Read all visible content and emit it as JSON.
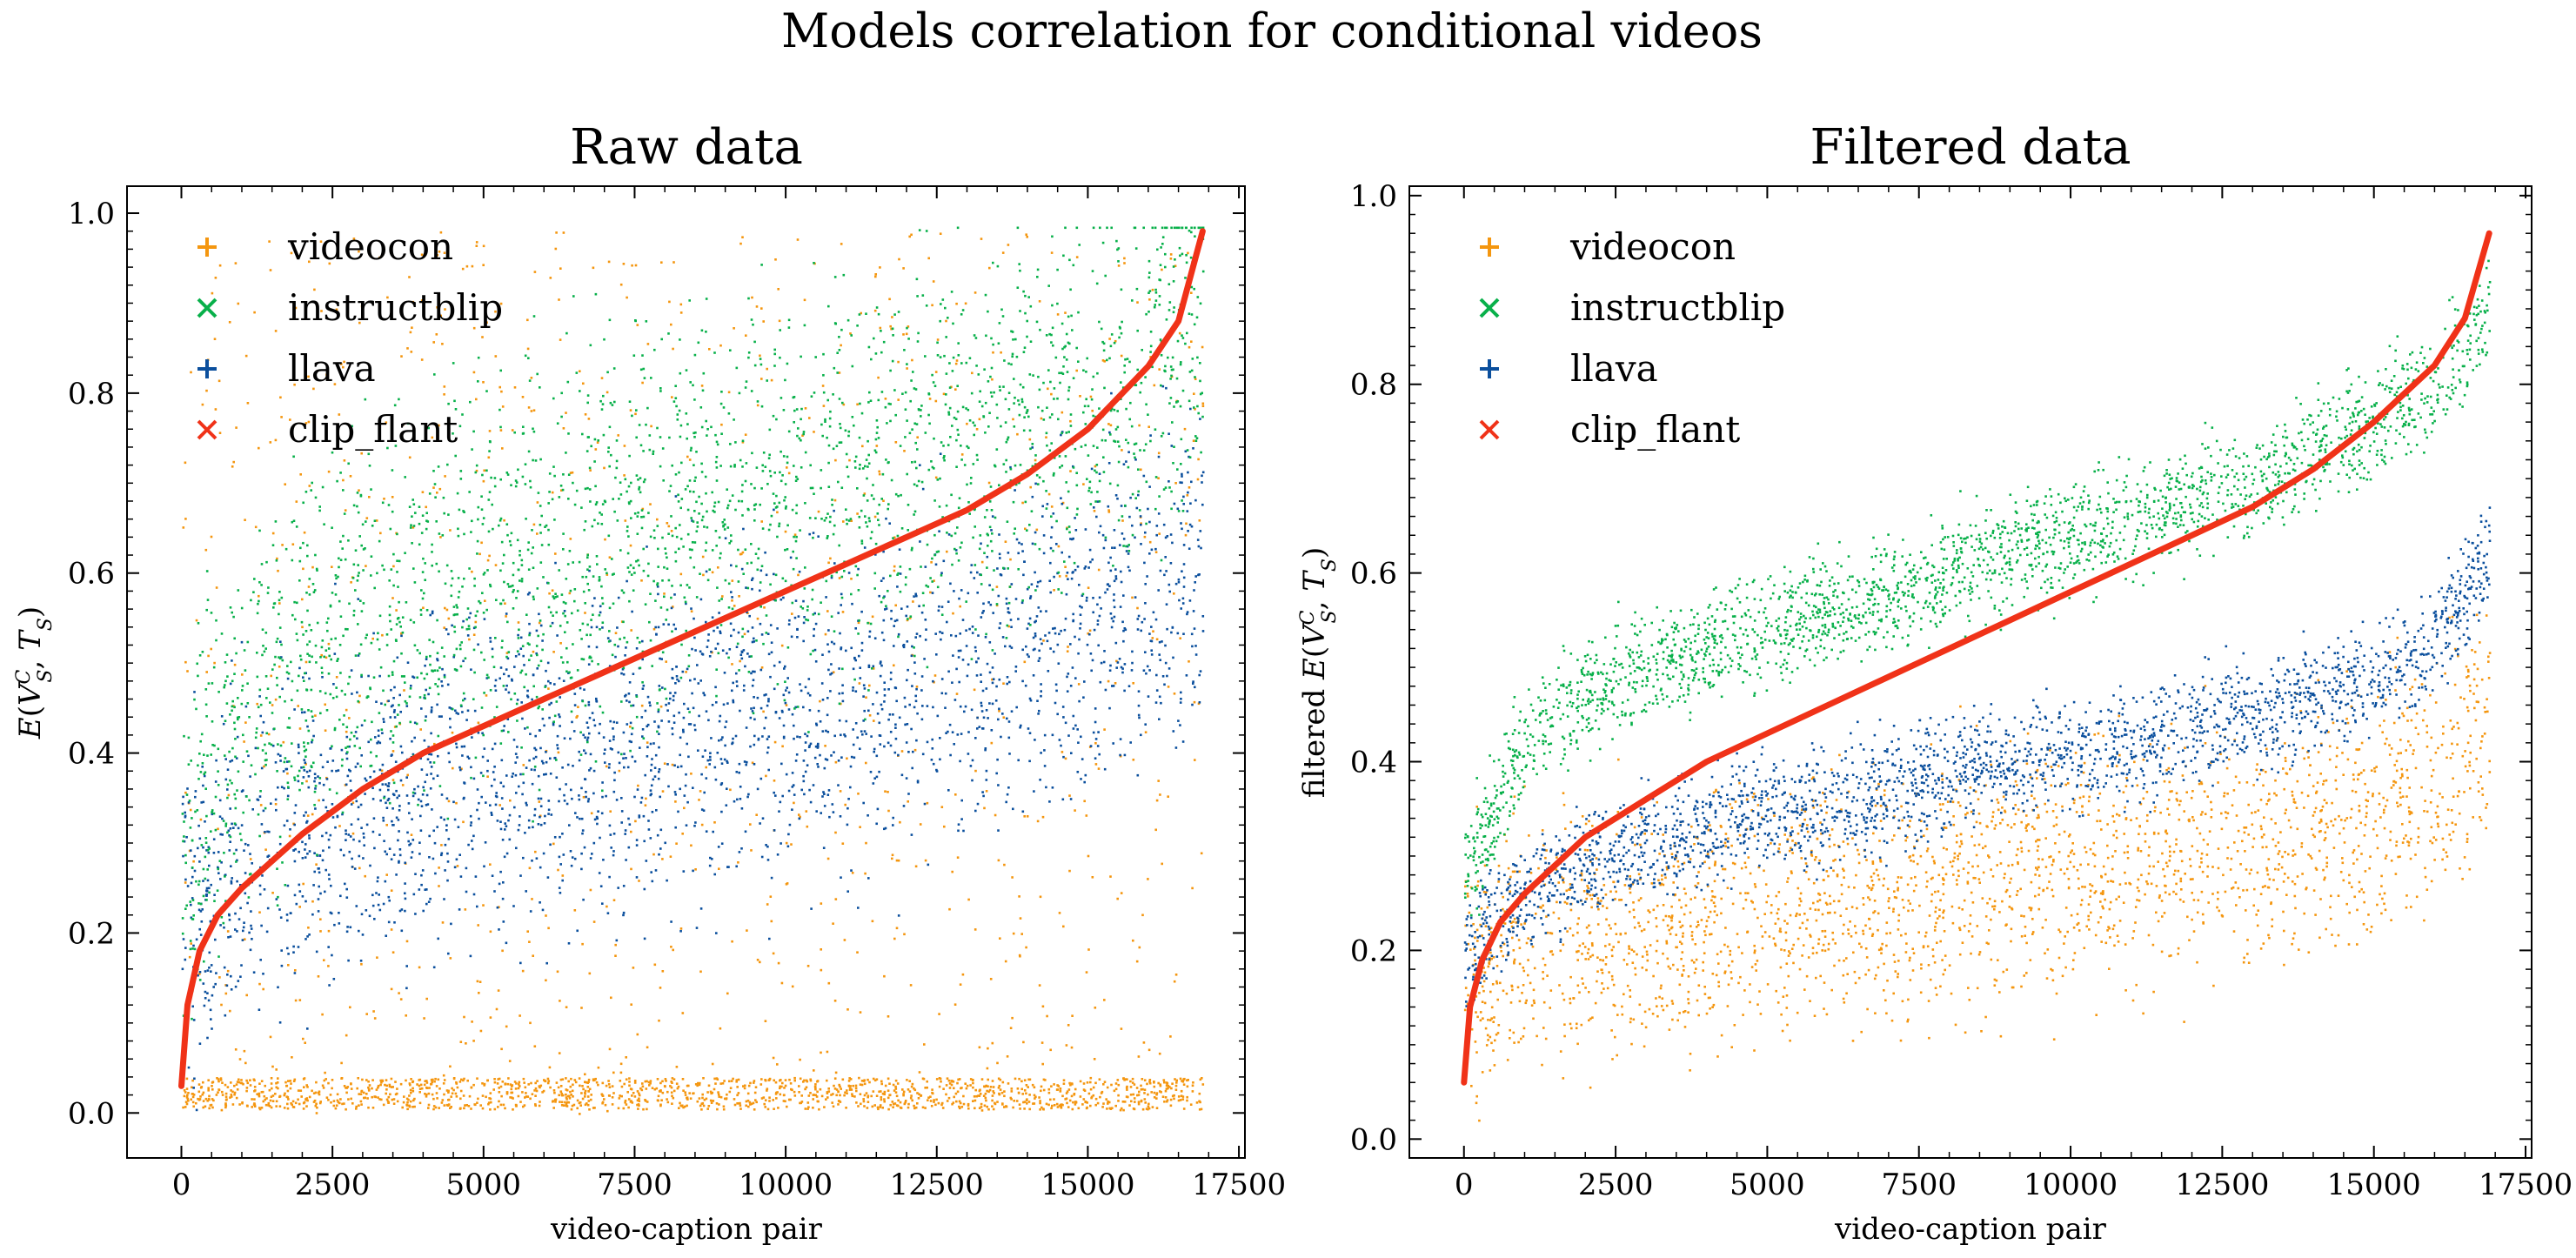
{
  "figure": {
    "suptitle": "Models correlation for conditional videos"
  },
  "colors": {
    "videocon": "#f4960f",
    "instructblip": "#08b04a",
    "llava": "#0b4f9d",
    "clip_flant": "#f03218"
  },
  "chart_data": [
    {
      "type": "scatter",
      "title": "Raw data",
      "xlabel": "video-caption pair",
      "ylabel": "E(V_S^C, T_S)",
      "xlim": [
        -900,
        17600
      ],
      "ylim": [
        -0.05,
        1.03
      ],
      "xticks": [
        0,
        2500,
        5000,
        7500,
        10000,
        12500,
        15000,
        17500
      ],
      "xtick_labels": [
        "0",
        "2500",
        "5000",
        "7500",
        "10000",
        "12500",
        "15000",
        "17500"
      ],
      "yticks": [
        0.0,
        0.2,
        0.4,
        0.6,
        0.8,
        1.0
      ],
      "ytick_labels": [
        "0.0",
        "0.2",
        "0.4",
        "0.6",
        "0.8",
        "1.0"
      ],
      "grid": false,
      "legend_position": "top-left",
      "n_points": 16900,
      "series": [
        {
          "name": "videocon",
          "marker": "+",
          "color": "#f4960f",
          "x": [
            0,
            1000,
            2000,
            3000,
            4000,
            5000,
            6000,
            7000,
            8000,
            9000,
            10000,
            11000,
            12000,
            13000,
            14000,
            15000,
            16000,
            16900
          ],
          "y": [
            0.05,
            0.04,
            0.04,
            0.04,
            0.04,
            0.05,
            0.05,
            0.05,
            0.05,
            0.06,
            0.06,
            0.06,
            0.07,
            0.07,
            0.08,
            0.09,
            0.12,
            0.15
          ],
          "spread": "most points near 0.0 with sparse scatter up to 1.0"
        },
        {
          "name": "instructblip",
          "marker": "x",
          "color": "#08b04a",
          "x": [
            0,
            1000,
            2000,
            3000,
            4000,
            5000,
            6000,
            7000,
            8000,
            9000,
            10000,
            11000,
            12000,
            13000,
            14000,
            15000,
            16000,
            16900
          ],
          "y": [
            0.3,
            0.43,
            0.5,
            0.54,
            0.57,
            0.6,
            0.62,
            0.64,
            0.66,
            0.68,
            0.69,
            0.71,
            0.73,
            0.75,
            0.77,
            0.8,
            0.84,
            0.88
          ],
          "spread": "about ±0.15"
        },
        {
          "name": "llava",
          "marker": "+",
          "color": "#0b4f9d",
          "x": [
            0,
            1000,
            2000,
            3000,
            4000,
            5000,
            6000,
            7000,
            8000,
            9000,
            10000,
            11000,
            12000,
            13000,
            14000,
            15000,
            16000,
            16900
          ],
          "y": [
            0.22,
            0.28,
            0.31,
            0.34,
            0.36,
            0.38,
            0.39,
            0.41,
            0.42,
            0.44,
            0.45,
            0.46,
            0.48,
            0.5,
            0.52,
            0.55,
            0.58,
            0.62
          ],
          "spread": "about ±0.14"
        },
        {
          "name": "clip_flant",
          "marker": "x",
          "color": "#f03218",
          "x": [
            0,
            100,
            300,
            600,
            1000,
            2000,
            3000,
            4000,
            5000,
            6000,
            7000,
            8000,
            9000,
            10000,
            11000,
            12000,
            13000,
            14000,
            15000,
            16000,
            16500,
            16900
          ],
          "y": [
            0.03,
            0.12,
            0.18,
            0.22,
            0.25,
            0.31,
            0.36,
            0.4,
            0.43,
            0.46,
            0.49,
            0.52,
            0.55,
            0.58,
            0.61,
            0.64,
            0.67,
            0.71,
            0.76,
            0.83,
            0.88,
            0.98
          ]
        }
      ]
    },
    {
      "type": "scatter",
      "title": "Filtered data",
      "xlabel": "video-caption pair",
      "ylabel": "filtered E(V_S^C, T_S)",
      "xlim": [
        -900,
        17600
      ],
      "ylim": [
        -0.02,
        1.01
      ],
      "xticks": [
        0,
        2500,
        5000,
        7500,
        10000,
        12500,
        15000,
        17500
      ],
      "xtick_labels": [
        "0",
        "2500",
        "5000",
        "7500",
        "10000",
        "12500",
        "15000",
        "17500"
      ],
      "yticks": [
        0.0,
        0.2,
        0.4,
        0.6,
        0.8,
        1.0
      ],
      "ytick_labels": [
        "0.0",
        "0.2",
        "0.4",
        "0.6",
        "0.8",
        "1.0"
      ],
      "grid": false,
      "legend_position": "top-left",
      "n_points": 16900,
      "series": [
        {
          "name": "videocon",
          "marker": "+",
          "color": "#f4960f",
          "x": [
            0,
            1000,
            2000,
            3000,
            4000,
            5000,
            6000,
            7000,
            8000,
            9000,
            10000,
            11000,
            12000,
            13000,
            14000,
            15000,
            16000,
            16900
          ],
          "y": [
            0.18,
            0.2,
            0.21,
            0.22,
            0.23,
            0.24,
            0.25,
            0.26,
            0.27,
            0.28,
            0.29,
            0.3,
            0.31,
            0.32,
            0.33,
            0.35,
            0.38,
            0.45
          ],
          "spread": "about ±0.10"
        },
        {
          "name": "instructblip",
          "marker": "x",
          "color": "#08b04a",
          "x": [
            0,
            1000,
            2000,
            3000,
            4000,
            5000,
            6000,
            7000,
            8000,
            9000,
            10000,
            11000,
            12000,
            13000,
            14000,
            15000,
            16000,
            16900
          ],
          "y": [
            0.28,
            0.42,
            0.47,
            0.5,
            0.52,
            0.54,
            0.56,
            0.58,
            0.6,
            0.62,
            0.64,
            0.66,
            0.68,
            0.7,
            0.73,
            0.76,
            0.8,
            0.88
          ],
          "spread": "about ±0.04"
        },
        {
          "name": "llava",
          "marker": "+",
          "color": "#0b4f9d",
          "x": [
            0,
            1000,
            2000,
            3000,
            4000,
            5000,
            6000,
            7000,
            8000,
            9000,
            10000,
            11000,
            12000,
            13000,
            14000,
            15000,
            16000,
            16900
          ],
          "y": [
            0.2,
            0.26,
            0.29,
            0.31,
            0.33,
            0.35,
            0.36,
            0.37,
            0.39,
            0.4,
            0.41,
            0.42,
            0.44,
            0.45,
            0.47,
            0.49,
            0.53,
            0.62
          ],
          "spread": "about ±0.03"
        },
        {
          "name": "clip_flant",
          "marker": "x",
          "color": "#f03218",
          "x": [
            0,
            100,
            300,
            600,
            1000,
            2000,
            3000,
            4000,
            5000,
            6000,
            7000,
            8000,
            9000,
            10000,
            11000,
            12000,
            13000,
            14000,
            15000,
            16000,
            16500,
            16900
          ],
          "y": [
            0.06,
            0.14,
            0.19,
            0.23,
            0.26,
            0.32,
            0.36,
            0.4,
            0.43,
            0.46,
            0.49,
            0.52,
            0.55,
            0.58,
            0.61,
            0.64,
            0.67,
            0.71,
            0.76,
            0.82,
            0.87,
            0.96
          ]
        }
      ]
    }
  ]
}
